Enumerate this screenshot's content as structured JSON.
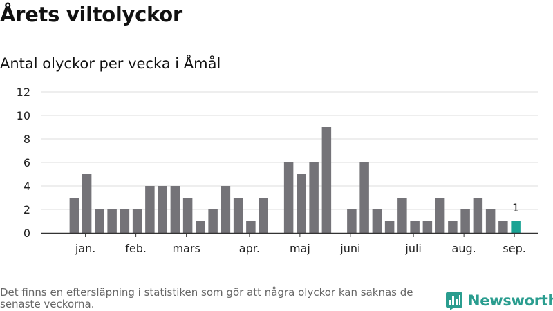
{
  "title": "Årets viltolyckor",
  "subtitle": "Antal olyckor per vecka i Åmål",
  "footnote": "Det finns en eftersläpning i statistiken som gör att några olyckor kan saknas de senaste veckorna.",
  "brand": {
    "name": "Newsworthy",
    "icon": "bar-chart-logo-icon"
  },
  "colors": {
    "bar": "#747378",
    "highlight": "#1aa394",
    "grid": "#dddddd",
    "axis": "#333333"
  },
  "chart_data": {
    "type": "bar",
    "title": "Årets viltolyckor",
    "subtitle": "Antal olyckor per vecka i Åmål",
    "xlabel": "",
    "ylabel": "",
    "ylim": [
      0,
      12
    ],
    "yticks": [
      "0",
      "2",
      "4",
      "6",
      "8",
      "10",
      "12"
    ],
    "grid": true,
    "weeks": [
      1,
      2,
      3,
      4,
      5,
      6,
      7,
      8,
      9,
      10,
      11,
      12,
      13,
      14,
      15,
      16,
      17,
      18,
      19,
      20,
      21,
      22,
      23,
      24,
      25,
      26,
      27,
      28,
      29,
      30,
      31,
      32,
      33,
      34,
      35,
      36,
      37,
      38
    ],
    "values": [
      0,
      3,
      5,
      2,
      2,
      2,
      2,
      4,
      4,
      4,
      3,
      1,
      2,
      4,
      3,
      1,
      3,
      0,
      6,
      5,
      6,
      9,
      0,
      2,
      6,
      2,
      1,
      3,
      1,
      1,
      3,
      1,
      2,
      3,
      2,
      1,
      1,
      0
    ],
    "highlight_index": 36,
    "highlight_label": "1",
    "month_labels": [
      {
        "label": "jan.",
        "week": 3
      },
      {
        "label": "feb.",
        "week": 7
      },
      {
        "label": "mars",
        "week": 11
      },
      {
        "label": "apr.",
        "week": 16
      },
      {
        "label": "maj",
        "week": 20
      },
      {
        "label": "juni",
        "week": 24
      },
      {
        "label": "juli",
        "week": 29
      },
      {
        "label": "aug.",
        "week": 33
      },
      {
        "label": "sep.",
        "week": 37
      }
    ]
  }
}
